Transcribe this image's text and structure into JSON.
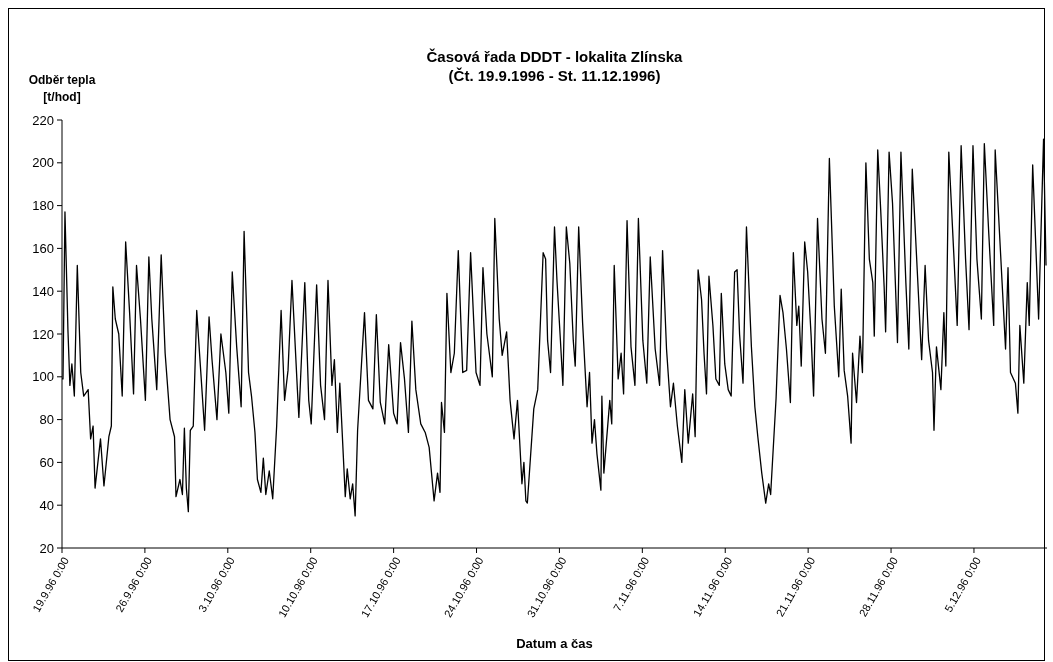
{
  "chart_data": {
    "type": "line",
    "title": "Časová řada DDDT - lokalita Zlínska",
    "subtitle": "(Čt. 19.9.1996 - St. 11.12.1996)",
    "xlabel": "Datum a čas",
    "ylabel": "Odběr tepla [t/hod]",
    "xlim": [
      "1996-09-19T00:00",
      "1996-12-11T04:00"
    ],
    "xticks": [
      {
        "value": "1996-09-19T00:00",
        "label": "19.9.96 0:00"
      },
      {
        "value": "1996-09-26T00:00",
        "label": "26.9.96 0:00"
      },
      {
        "value": "1996-10-03T00:00",
        "label": "3.10.96 0:00"
      },
      {
        "value": "1996-10-10T00:00",
        "label": "10.10.96 0:00"
      },
      {
        "value": "1996-10-17T00:00",
        "label": "17.10.96 0:00"
      },
      {
        "value": "1996-10-24T00:00",
        "label": "24.10.96 0:00"
      },
      {
        "value": "1996-10-31T00:00",
        "label": "31.10.96 0:00"
      },
      {
        "value": "1996-11-07T00:00",
        "label": "7.11.96 0:00"
      },
      {
        "value": "1996-11-14T00:00",
        "label": "14.11.96 0:00"
      },
      {
        "value": "1996-11-21T00:00",
        "label": "21.11.96 0:00"
      },
      {
        "value": "1996-11-28T00:00",
        "label": "28.11.96 0:00"
      },
      {
        "value": "1996-12-05T00:00",
        "label": "5.12.96 0:00"
      }
    ],
    "ylim": [
      20,
      220
    ],
    "yticks": [
      20,
      40,
      60,
      80,
      100,
      120,
      140,
      160,
      180,
      200,
      220
    ],
    "marker": "none",
    "line_style": "solid",
    "series": [
      {
        "color": "#000000",
        "x": [
          "1996-09-19T00:00",
          "1996-09-19T02:00",
          "1996-09-19T06:00",
          "1996-09-19T12:00",
          "1996-09-19T16:00",
          "1996-09-19T20:00",
          "1996-09-20T01:00",
          "1996-09-20T07:00",
          "1996-09-20T14:00",
          "1996-09-20T20:00",
          "1996-09-21T05:00",
          "1996-09-21T10:00",
          "1996-09-21T15:00",
          "1996-09-21T19:00",
          "1996-09-22T06:00",
          "1996-09-22T13:00",
          "1996-09-22T23:00",
          "1996-09-23T04:00",
          "1996-09-23T07:00",
          "1996-09-23T12:00",
          "1996-09-23T19:00",
          "1996-09-24T02:00",
          "1996-09-24T09:00",
          "1996-09-24T17:00",
          "1996-09-25T01:00",
          "1996-09-25T07:00",
          "1996-09-25T15:00",
          "1996-09-26T01:00",
          "1996-09-26T08:00",
          "1996-09-26T14:00",
          "1996-09-27T00:00",
          "1996-09-27T09:00",
          "1996-09-27T17:00",
          "1996-09-28T03:00",
          "1996-09-28T12:00",
          "1996-09-28T15:00",
          "1996-09-28T23:00",
          "1996-09-29T04:00",
          "1996-09-29T08:00",
          "1996-09-29T12:00",
          "1996-09-29T16:00",
          "1996-09-29T20:00",
          "1996-09-30T02:00",
          "1996-09-30T09:00",
          "1996-09-30T17:00",
          "1996-10-01T01:00",
          "1996-10-01T10:00",
          "1996-10-01T16:00",
          "1996-10-02T02:00",
          "1996-10-02T10:00",
          "1996-10-02T20:00",
          "1996-10-03T02:00",
          "1996-10-03T09:00",
          "1996-10-03T18:00",
          "1996-10-04T03:00",
          "1996-10-04T09:00",
          "1996-10-04T18:00",
          "1996-10-05T00:00",
          "1996-10-05T07:00",
          "1996-10-05T12:00",
          "1996-10-05T19:00",
          "1996-10-06T00:00",
          "1996-10-06T05:00",
          "1996-10-06T12:00",
          "1996-10-06T19:00",
          "1996-10-07T03:00",
          "1996-10-07T12:00",
          "1996-10-07T19:00",
          "1996-10-08T02:00",
          "1996-10-08T10:00",
          "1996-10-08T21:00",
          "1996-10-09T00:00",
          "1996-10-09T12:00",
          "1996-10-09T20:00",
          "1996-10-10T01:00",
          "1996-10-10T12:00",
          "1996-10-10T20:00",
          "1996-10-11T04:00",
          "1996-10-11T11:00",
          "1996-10-11T19:00",
          "1996-10-12T00:00",
          "1996-10-12T06:00",
          "1996-10-12T11:00",
          "1996-10-12T22:00",
          "1996-10-13T02:00",
          "1996-10-13T08:00",
          "1996-10-13T13:00",
          "1996-10-13T18:00",
          "1996-10-13T23:00",
          "1996-10-14T13:00",
          "1996-10-14T21:00",
          "1996-10-15T06:00",
          "1996-10-15T13:00",
          "1996-10-15T21:00",
          "1996-10-16T06:00",
          "1996-10-16T14:00",
          "1996-10-17T00:00",
          "1996-10-17T07:00",
          "1996-10-17T14:00",
          "1996-10-17T22:00",
          "1996-10-18T06:00",
          "1996-10-18T13:00",
          "1996-10-18T21:00",
          "1996-10-19T07:00",
          "1996-10-19T16:00",
          "1996-10-20T00:00",
          "1996-10-20T10:00",
          "1996-10-20T17:00",
          "1996-10-20T22:00",
          "1996-10-21T01:00",
          "1996-10-21T07:00",
          "1996-10-21T12:00",
          "1996-10-21T20:00",
          "1996-10-22T03:00",
          "1996-10-22T11:00",
          "1996-10-22T20:00",
          "1996-10-23T04:00",
          "1996-10-23T12:00",
          "1996-10-23T23:00",
          "1996-10-24T07:00",
          "1996-10-24T13:00",
          "1996-10-24T21:00",
          "1996-10-25T08:00",
          "1996-10-25T13:00",
          "1996-10-25T22:00",
          "1996-10-26T04:00",
          "1996-10-26T13:00",
          "1996-10-26T20:00",
          "1996-10-27T04:00",
          "1996-10-27T11:00",
          "1996-10-27T20:00",
          "1996-10-28T00:00",
          "1996-10-28T04:00",
          "1996-10-28T07:00",
          "1996-10-28T20:00",
          "1996-10-29T04:00",
          "1996-10-29T15:00",
          "1996-10-29T20:00",
          "1996-10-30T00:00",
          "1996-10-30T06:00",
          "1996-10-30T14:00",
          "1996-10-30T19:00",
          "1996-10-31T02:00",
          "1996-10-31T07:00",
          "1996-10-31T14:00",
          "1996-10-31T21:00",
          "1996-11-01T04:00",
          "1996-11-01T08:00",
          "1996-11-01T15:00",
          "1996-11-01T23:00",
          "1996-11-02T08:00",
          "1996-11-02T13:00",
          "1996-11-02T18:00",
          "1996-11-02T23:00",
          "1996-11-03T04:00",
          "1996-11-03T12:00",
          "1996-11-03T14:00",
          "1996-11-03T18:00",
          "1996-11-04T06:00",
          "1996-11-04T10:00",
          "1996-11-04T15:00",
          "1996-11-04T23:00",
          "1996-11-05T05:00",
          "1996-11-05T10:00",
          "1996-11-05T17:00",
          "1996-11-06T01:00",
          "1996-11-06T09:00",
          "1996-11-06T16:00",
          "1996-11-07T01:00",
          "1996-11-07T09:00",
          "1996-11-07T16:00",
          "1996-11-08T02:00",
          "1996-11-08T11:00",
          "1996-11-08T17:00",
          "1996-11-09T01:00",
          "1996-11-09T09:00",
          "1996-11-09T15:00",
          "1996-11-09T23:00",
          "1996-11-10T08:00",
          "1996-11-10T14:00",
          "1996-11-10T21:00",
          "1996-11-11T06:00",
          "1996-11-11T11:00",
          "1996-11-11T17:00",
          "1996-11-12T00:00",
          "1996-11-12T05:00",
          "1996-11-12T10:00",
          "1996-11-12T15:00",
          "1996-11-12T23:00",
          "1996-11-13T05:00",
          "1996-11-13T12:00",
          "1996-11-13T16:00",
          "1996-11-13T23:00",
          "1996-11-14T06:00",
          "1996-11-14T12:00",
          "1996-11-14T19:00",
          "1996-11-15T00:00",
          "1996-11-15T05:00",
          "1996-11-15T12:00",
          "1996-11-15T19:00",
          "1996-11-16T05:00",
          "1996-11-16T12:00",
          "1996-11-16T18:00",
          "1996-11-17T02:00",
          "1996-11-17T10:00",
          "1996-11-17T16:00",
          "1996-11-17T20:00",
          "1996-11-18T07:00",
          "1996-11-18T15:00",
          "1996-11-18T21:00",
          "1996-11-19T04:00",
          "1996-11-19T12:00",
          "1996-11-19T18:00",
          "1996-11-20T01:00",
          "1996-11-20T05:00",
          "1996-11-20T10:00",
          "1996-11-20T17:00",
          "1996-11-20T23:00",
          "1996-11-21T06:00",
          "1996-11-21T11:00",
          "1996-11-21T19:00",
          "1996-11-22T04:00",
          "1996-11-22T11:00",
          "1996-11-22T19:00",
          "1996-11-23T05:00",
          "1996-11-23T14:00",
          "1996-11-23T19:00",
          "1996-11-24T01:00",
          "1996-11-24T08:00",
          "1996-11-24T15:00",
          "1996-11-24T18:00",
          "1996-11-25T02:00",
          "1996-11-25T09:00",
          "1996-11-25T14:00",
          "1996-11-25T21:00",
          "1996-11-26T04:00",
          "1996-11-26T11:00",
          "1996-11-26T14:00",
          "1996-11-26T21:00",
          "1996-11-27T03:00",
          "1996-11-27T10:00",
          "1996-11-27T13:00",
          "1996-11-27T20:00",
          "1996-11-28T03:00",
          "1996-11-28T13:00",
          "1996-11-28T20:00",
          "1996-11-29T06:00",
          "1996-11-29T12:00",
          "1996-11-29T19:00",
          "1996-11-30T05:00",
          "1996-11-30T14:00",
          "1996-11-30T21:00",
          "1996-12-01T04:00",
          "1996-12-01T12:00",
          "1996-12-01T15:00",
          "1996-12-01T20:00",
          "1996-12-02T05:00",
          "1996-12-02T11:00",
          "1996-12-02T15:00",
          "1996-12-02T21:00",
          "1996-12-03T07:00",
          "1996-12-03T14:00",
          "1996-12-03T22:00",
          "1996-12-04T07:00",
          "1996-12-04T14:00",
          "1996-12-04T22:00",
          "1996-12-05T06:00",
          "1996-12-05T15:00",
          "1996-12-05T21:00",
          "1996-12-06T06:00",
          "1996-12-06T16:00",
          "1996-12-06T19:00",
          "1996-12-07T09:00",
          "1996-12-07T16:00",
          "1996-12-07T21:00",
          "1996-12-08T02:00",
          "1996-12-08T12:00",
          "1996-12-08T17:00",
          "1996-12-08T21:00",
          "1996-12-09T05:00",
          "1996-12-09T12:00",
          "1996-12-09T16:00",
          "1996-12-09T23:00",
          "1996-12-10T11:00",
          "1996-12-10T21:00",
          "1996-12-11T02:00"
        ],
        "values": [
          99,
          99,
          177,
          122,
          96,
          106,
          91,
          152,
          102,
          91,
          94,
          71,
          77,
          48,
          71,
          49,
          72,
          77,
          142,
          127,
          120,
          91,
          163,
          130,
          92,
          152,
          127,
          89,
          156,
          127,
          94,
          157,
          111,
          80,
          72,
          44,
          52,
          45,
          76,
          48,
          37,
          75,
          77,
          131,
          103,
          75,
          128,
          108,
          80,
          120,
          102,
          83,
          149,
          114,
          86,
          168,
          102,
          91,
          74,
          52,
          46,
          62,
          45,
          56,
          43,
          77,
          131,
          89,
          103,
          145,
          94,
          81,
          144,
          89,
          78,
          143,
          96,
          80,
          145,
          96,
          108,
          74,
          97,
          44,
          57,
          43,
          50,
          35,
          75,
          130,
          89,
          85,
          129,
          88,
          78,
          115,
          83,
          78,
          116,
          99,
          74,
          126,
          94,
          78,
          74,
          67,
          42,
          55,
          46,
          88,
          74,
          139,
          102,
          111,
          159,
          102,
          103,
          158,
          102,
          96,
          151,
          120,
          100,
          174,
          127,
          110,
          121,
          89,
          71,
          89,
          50,
          60,
          42,
          41,
          85,
          94,
          158,
          155,
          117,
          102,
          170,
          145,
          117,
          96,
          170,
          153,
          117,
          105,
          170,
          125,
          86,
          102,
          69,
          80,
          64,
          47,
          91,
          55,
          89,
          78,
          152,
          99,
          111,
          92,
          173,
          114,
          96,
          174,
          117,
          97,
          156,
          113,
          96,
          159,
          113,
          86,
          97,
          77,
          60,
          94,
          69,
          92,
          72,
          150,
          136,
          111,
          92,
          147,
          124,
          99,
          96,
          139,
          106,
          94,
          91,
          149,
          150,
          120,
          97,
          170,
          114,
          86,
          72,
          55,
          41,
          50,
          45,
          90,
          138,
          130,
          113,
          88,
          158,
          124,
          133,
          105,
          163,
          149,
          119,
          91,
          174,
          127,
          111,
          202,
          133,
          100,
          141,
          103,
          91,
          69,
          111,
          88,
          119,
          102,
          200,
          155,
          144,
          119,
          206,
          178,
          142,
          121,
          205,
          181,
          116,
          205,
          144,
          113,
          197,
          150,
          108,
          152,
          117,
          102,
          75,
          114,
          94,
          130,
          105,
          205,
          158,
          124,
          208,
          155,
          122,
          208,
          155,
          127,
          209,
          167,
          124,
          206,
          144,
          113,
          151,
          102,
          97,
          83,
          124,
          97,
          144,
          124,
          199,
          127,
          211,
          152
        ]
      }
    ]
  }
}
